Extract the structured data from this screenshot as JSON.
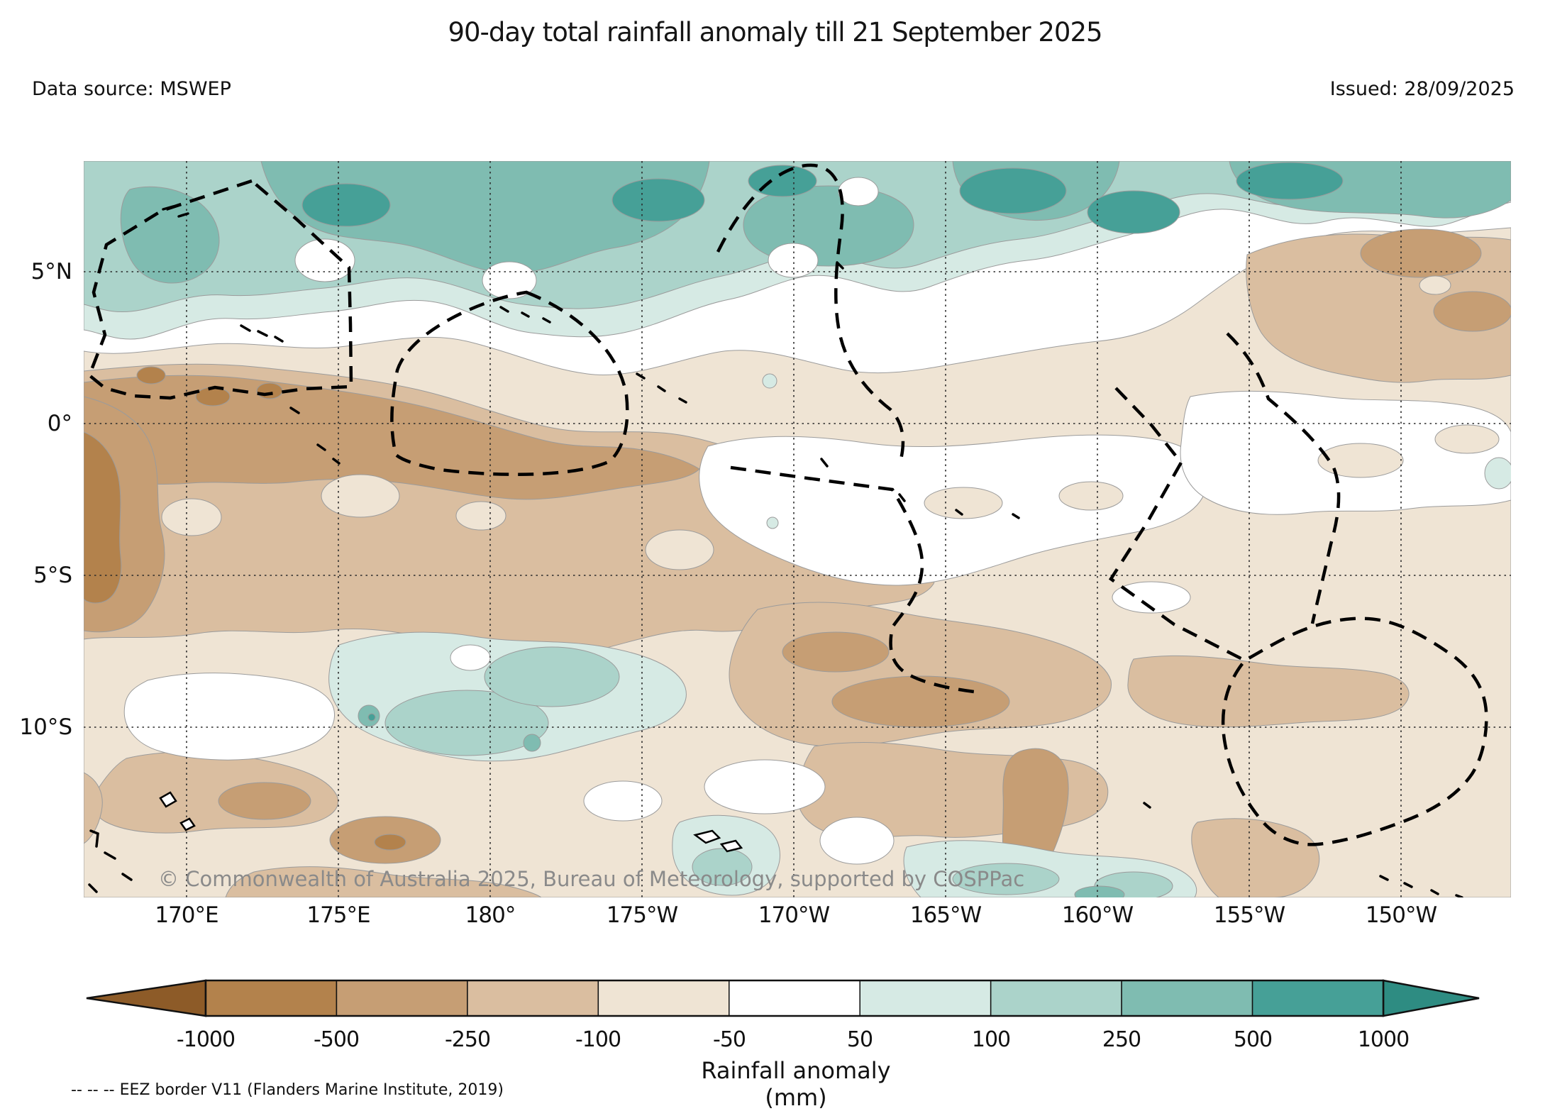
{
  "header": {
    "title": "90-day total rainfall anomaly till 21 September 2025",
    "data_source": "Data source: MSWEP",
    "issued": "Issued: 28/09/2025"
  },
  "map": {
    "copyright": "© Commonwealth of Australia 2025, Bureau of Meteorology, supported by COSPPac",
    "lat_ticks": [
      "5°N",
      "0°",
      "5°S",
      "10°S"
    ],
    "lon_ticks": [
      "170°E",
      "175°E",
      "180°",
      "175°W",
      "170°W",
      "165°W",
      "160°W",
      "155°W",
      "150°W"
    ]
  },
  "colorbar": {
    "label": "Rainfall anomaly (mm)",
    "tick_labels": [
      "-1000",
      "-500",
      "-250",
      "-100",
      "-50",
      "50",
      "100",
      "250",
      "500",
      "1000"
    ],
    "segment_colors": [
      "#b3824c",
      "#c69e74",
      "#dabea0",
      "#efe4d4",
      "#ffffff",
      "#d6eae4",
      "#abd3ca",
      "#7fbcb1",
      "#46a097"
    ],
    "left_arrow_color": "#8d5b28",
    "right_arrow_color": "#2e8c82"
  },
  "palette": {
    "b1": "#b3824c",
    "b2": "#c69e74",
    "b3": "#dabea0",
    "b4": "#efe4d4",
    "t1": "#d6eae4",
    "t2": "#abd3ca",
    "t3": "#7fbcb1",
    "t4": "#46a097"
  },
  "footnote": "-- -- -- EEZ border V11 (Flanders Marine Institute, 2019)"
}
